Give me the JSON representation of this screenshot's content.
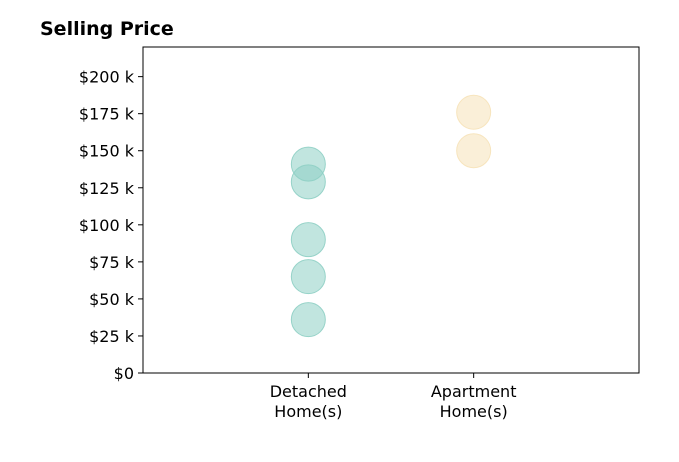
{
  "chart_data": {
    "type": "scatter",
    "title": "Selling Price",
    "xlabel": "",
    "ylabel": "",
    "categories": [
      [
        "Detached",
        "Home(s)"
      ],
      [
        "Apartment",
        "Home(s)"
      ]
    ],
    "x_range": [
      0,
      3
    ],
    "ylim": [
      0,
      220000
    ],
    "yticks": [
      0,
      25000,
      50000,
      75000,
      100000,
      125000,
      150000,
      175000,
      200000
    ],
    "ytick_labels": [
      "$0",
      "$25 k",
      "$50 k",
      "$75 k",
      "$100 k",
      "$125 k",
      "$150 k",
      "$175 k",
      "$200 k"
    ],
    "grid": false,
    "legend": "none",
    "series": [
      {
        "category_index": 0,
        "color": "#8ecfc4",
        "values": [
          141000,
          129000,
          90000,
          65000,
          36000
        ]
      },
      {
        "category_index": 1,
        "color": "#f6e2b8",
        "values": [
          176000,
          150000
        ]
      }
    ]
  }
}
